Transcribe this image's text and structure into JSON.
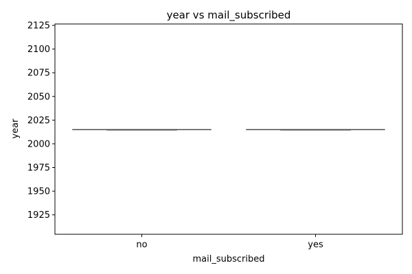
{
  "chart_data": {
    "type": "box",
    "title": "year vs mail_subscribed",
    "xlabel": "mail_subscribed",
    "ylabel": "year",
    "categories": [
      "no",
      "yes"
    ],
    "boxes": [
      {
        "category": "no",
        "whisker_low": 2015,
        "q1": 2015,
        "median": 2015,
        "q3": 2015,
        "whisker_high": 2015
      },
      {
        "category": "yes",
        "whisker_low": 2015,
        "q1": 2015,
        "median": 2015,
        "q3": 2015,
        "whisker_high": 2015
      }
    ],
    "ylim": [
      1904.5,
      2126.5
    ],
    "yticks": [
      1925,
      1950,
      1975,
      2000,
      2025,
      2050,
      2075,
      2100,
      2125
    ],
    "grid": false,
    "legend": "none",
    "colors": {
      "box_line": "#4d4d4d",
      "axis": "#000000"
    }
  }
}
